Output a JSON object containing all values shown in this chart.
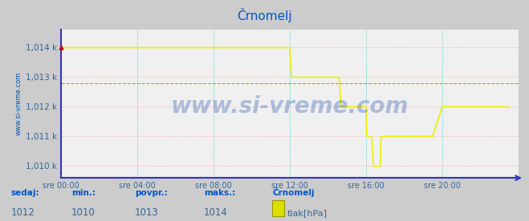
{
  "title": "Črnomelj",
  "title_color": "#0055cc",
  "bg_color": "#cccccc",
  "plot_bg_color": "#f0f0f0",
  "ylabel_text": "www.si-vreme.com",
  "ylabel_color": "#0055aa",
  "xticklabels": [
    "sre 00:00",
    "sre 04:00",
    "sre 08:00",
    "sre 12:00",
    "sre 16:00",
    "sre 20:00"
  ],
  "yticklabels": [
    "1,010 k",
    "1,011 k",
    "1,012 k",
    "1,013 k",
    "1,014 k"
  ],
  "ytick_values": [
    1010,
    1011,
    1012,
    1013,
    1014
  ],
  "ylim": [
    1009.6,
    1014.6
  ],
  "xlim_hours": [
    0,
    24
  ],
  "avg_value": 1012.8,
  "line_color": "#eeee00",
  "avg_line_color": "#aaaa00",
  "axis_color": "#3333bb",
  "grid_h_color": "#ffaaaa",
  "grid_v_color": "#44cccc",
  "watermark": "www.si-vreme.com",
  "watermark_color": "#1144aa",
  "watermark_alpha": 0.3,
  "footer_labels": [
    "sedaj:",
    "min.:",
    "povpr.:",
    "maks.:",
    "Črnomelj"
  ],
  "footer_values": [
    "1012",
    "1010",
    "1013",
    "1014"
  ],
  "footer_legend_label": "tlak[hPa]",
  "footer_label_color": "#0055cc",
  "footer_value_color": "#336699",
  "legend_color": "#dddd00",
  "time_points_hours": [
    0.0,
    0.083,
    0.5,
    1.0,
    1.5,
    2.0,
    2.5,
    3.0,
    3.5,
    4.0,
    4.5,
    5.0,
    5.5,
    6.0,
    6.5,
    7.0,
    7.5,
    8.0,
    8.5,
    9.0,
    9.5,
    10.0,
    10.5,
    11.0,
    11.5,
    11.9,
    12.0,
    12.1,
    12.5,
    13.0,
    13.5,
    14.0,
    14.5,
    14.6,
    14.7,
    15.0,
    15.5,
    15.9,
    16.0,
    16.05,
    16.1,
    16.2,
    16.3,
    16.35,
    16.4,
    16.5,
    16.6,
    16.7,
    16.75,
    16.8,
    17.0,
    17.5,
    18.0,
    18.5,
    19.0,
    19.5,
    20.0,
    20.5,
    21.0,
    21.5,
    22.0,
    22.5,
    23.0,
    23.5
  ],
  "pressure_values": [
    1014,
    1014,
    1014,
    1014,
    1014,
    1014,
    1014,
    1014,
    1014,
    1014,
    1014,
    1014,
    1014,
    1014,
    1014,
    1014,
    1014,
    1014,
    1014,
    1014,
    1014,
    1014,
    1014,
    1014,
    1014,
    1014,
    1014,
    1013,
    1013,
    1013,
    1013,
    1013,
    1013,
    1013,
    1012,
    1012,
    1012,
    1012,
    1012,
    1011,
    1011,
    1011,
    1011,
    1010.5,
    1010,
    1010,
    1010,
    1010,
    1010,
    1011,
    1011,
    1011,
    1011,
    1011,
    1011,
    1011,
    1012,
    1012,
    1012,
    1012,
    1012,
    1012,
    1012,
    1012
  ]
}
